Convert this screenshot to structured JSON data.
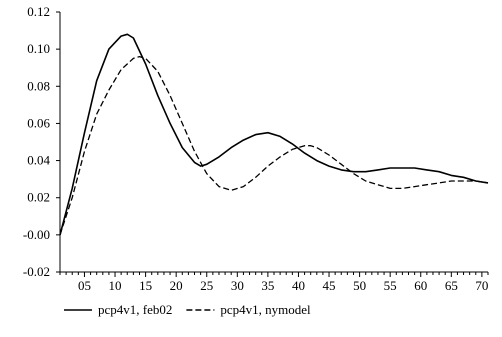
{
  "chart_data": {
    "type": "line",
    "title": "",
    "xlabel": "",
    "ylabel": "",
    "xlim": [
      1,
      71
    ],
    "ylim": [
      -0.02,
      0.12
    ],
    "x_ticks": [
      5,
      10,
      15,
      20,
      25,
      30,
      35,
      40,
      45,
      50,
      55,
      60,
      65,
      70
    ],
    "x_tick_labels": [
      "05",
      "10",
      "15",
      "20",
      "25",
      "30",
      "35",
      "40",
      "45",
      "50",
      "55",
      "60",
      "65",
      "70"
    ],
    "y_ticks": [
      -0.02,
      0.0,
      0.02,
      0.04,
      0.06,
      0.08,
      0.1,
      0.12
    ],
    "y_tick_labels": [
      "-0.02",
      "-0.00",
      "0.02",
      "0.04",
      "0.06",
      "0.08",
      "0.10",
      "0.12"
    ],
    "grid": false,
    "legend": "bottom",
    "series": [
      {
        "name": "pcp4v1, feb02",
        "style": "solid",
        "color": "#000000",
        "x": [
          1,
          3,
          5,
          7,
          9,
          11,
          12,
          13,
          15,
          17,
          19,
          21,
          23,
          24,
          25,
          27,
          29,
          31,
          33,
          35,
          37,
          39,
          41,
          43,
          45,
          47,
          49,
          51,
          53,
          55,
          57,
          59,
          61,
          63,
          65,
          67,
          69,
          71
        ],
        "y": [
          0.0,
          0.025,
          0.055,
          0.083,
          0.1,
          0.107,
          0.108,
          0.106,
          0.092,
          0.075,
          0.06,
          0.047,
          0.039,
          0.037,
          0.038,
          0.042,
          0.047,
          0.051,
          0.054,
          0.055,
          0.053,
          0.049,
          0.044,
          0.04,
          0.037,
          0.035,
          0.034,
          0.034,
          0.035,
          0.036,
          0.036,
          0.036,
          0.035,
          0.034,
          0.032,
          0.031,
          0.029,
          0.028
        ]
      },
      {
        "name": "pcp4v1, nymodel",
        "style": "dashed",
        "color": "#000000",
        "x": [
          1,
          3,
          5,
          7,
          9,
          11,
          13,
          14,
          15,
          17,
          19,
          21,
          23,
          25,
          27,
          29,
          31,
          33,
          35,
          37,
          39,
          41,
          42,
          43,
          45,
          47,
          49,
          51,
          53,
          55,
          57,
          59,
          61,
          63,
          65,
          67,
          69,
          71
        ],
        "y": [
          0.0,
          0.02,
          0.045,
          0.065,
          0.078,
          0.089,
          0.095,
          0.096,
          0.095,
          0.088,
          0.075,
          0.06,
          0.045,
          0.033,
          0.026,
          0.024,
          0.026,
          0.031,
          0.037,
          0.042,
          0.046,
          0.048,
          0.048,
          0.047,
          0.043,
          0.038,
          0.033,
          0.029,
          0.027,
          0.025,
          0.025,
          0.026,
          0.027,
          0.028,
          0.029,
          0.029,
          0.029,
          0.028
        ]
      }
    ]
  }
}
